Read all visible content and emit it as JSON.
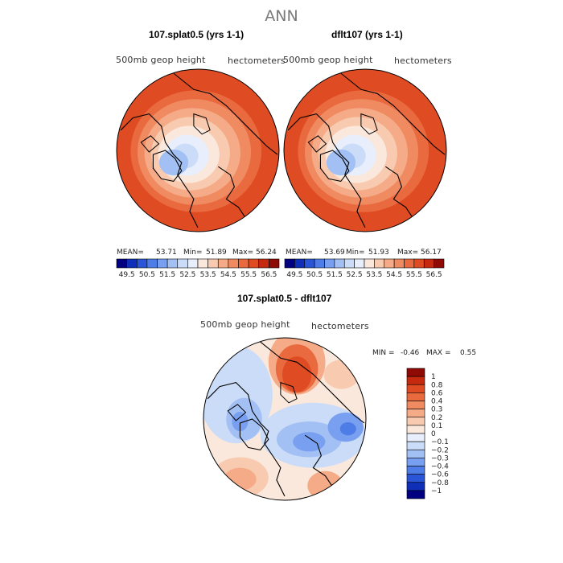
{
  "title": "ANN",
  "chart_data": [
    {
      "type": "heatmap",
      "projection": "polar-stereographic (Northern Hemisphere)",
      "title": "107.splat0.5 (yrs 1-1)",
      "field_label": "500mb geop height",
      "units": "hectometers",
      "stats": {
        "mean_label": "MEAN=",
        "mean": "53.71",
        "min_label": "Min=",
        "min": "51.89",
        "max_label": "Max=",
        "max": "56.24"
      },
      "colorbar_ticks": [
        "49.5",
        "50.5",
        "51.5",
        "52.5",
        "53.5",
        "54.5",
        "55.5",
        "56.5"
      ],
      "rings": [
        56.0,
        55.5,
        55.0,
        54.5,
        54.0,
        53.5,
        53.0,
        52.5
      ],
      "colormap": [
        "#000080",
        "#0f2fb8",
        "#2a55d6",
        "#4f7de8",
        "#79a0f0",
        "#a3c0f5",
        "#cadcf8",
        "#e8eefb",
        "#fbe8dc",
        "#f8cbb1",
        "#f5ab87",
        "#f08a61",
        "#ea6a3f",
        "#df4b22",
        "#c52a10",
        "#8f0a05"
      ]
    },
    {
      "type": "heatmap",
      "projection": "polar-stereographic (Northern Hemisphere)",
      "title": "dflt107 (yrs 1-1)",
      "field_label": "500mb geop height",
      "units": "hectometers",
      "stats": {
        "mean_label": "MEAN=",
        "mean": "53.69",
        "min_label": "Min=",
        "min": "51.93",
        "max_label": "Max=",
        "max": "56.17"
      },
      "colorbar_ticks": [
        "49.5",
        "50.5",
        "51.5",
        "52.5",
        "53.5",
        "54.5",
        "55.5",
        "56.5"
      ],
      "rings": [
        56.0,
        55.5,
        55.0,
        54.5,
        54.0,
        53.5,
        53.0,
        52.5
      ],
      "colormap": [
        "#000080",
        "#0f2fb8",
        "#2a55d6",
        "#4f7de8",
        "#79a0f0",
        "#a3c0f5",
        "#cadcf8",
        "#e8eefb",
        "#fbe8dc",
        "#f8cbb1",
        "#f5ab87",
        "#f08a61",
        "#ea6a3f",
        "#df4b22",
        "#c52a10",
        "#8f0a05"
      ]
    },
    {
      "type": "heatmap",
      "projection": "polar-stereographic (Northern Hemisphere)",
      "title": "107.splat0.5 - dflt107",
      "field_label": "500mb geop height",
      "units": "hectometers",
      "stats": {
        "min_label": "MIN =",
        "min": "-0.46",
        "max_label": "MAX =",
        "max": "0.55"
      },
      "colorbar_ticks": [
        "1",
        "0.8",
        "0.6",
        "0.4",
        "0.3",
        "0.2",
        "0.1",
        "0",
        "−0.1",
        "−0.2",
        "−0.3",
        "−0.4",
        "−0.6",
        "−0.8",
        "−1"
      ],
      "colormap_top_to_bottom": [
        "#8f0a05",
        "#c52a10",
        "#df4b22",
        "#ea6a3f",
        "#f08a61",
        "#f5ab87",
        "#f8cbb1",
        "#fbe8dc",
        "#e8eefb",
        "#cadcf8",
        "#a3c0f5",
        "#79a0f0",
        "#4f7de8",
        "#2a55d6",
        "#0f2fb8",
        "#000080"
      ],
      "anomalies": [
        {
          "value": 0.5,
          "where": "north (top)"
        },
        {
          "value": 0.3,
          "where": "upper-right"
        },
        {
          "value": -0.4,
          "where": "center-right"
        },
        {
          "value": -0.3,
          "where": "left"
        },
        {
          "value": 0.2,
          "where": "bottom-left"
        },
        {
          "value": 0.2,
          "where": "bottom-right"
        }
      ]
    }
  ]
}
